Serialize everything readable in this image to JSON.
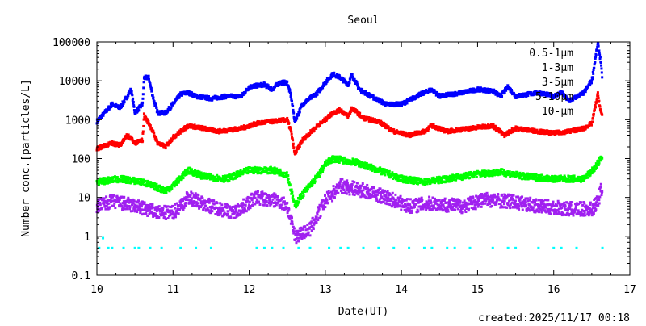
{
  "chart_data": {
    "type": "scatter",
    "title": "Seoul",
    "xlabel": "Date(UT)",
    "ylabel": "Number conc.[particles/L]",
    "xlim": [
      10,
      17
    ],
    "ylim": [
      0.1,
      100000
    ],
    "yscale": "log",
    "xticks": [
      "10",
      "11",
      "12",
      "13",
      "14",
      "15",
      "16",
      "17"
    ],
    "yticks": [
      "0.1",
      "1",
      "10",
      "100",
      "1000",
      "10000",
      "100000"
    ],
    "legend_position": "top-right",
    "footer": "created:2025/11/17 00:18",
    "series": [
      {
        "name": "0.5-1μm",
        "color": "#0000ff",
        "points": [
          [
            10.0,
            900
          ],
          [
            10.1,
            1500
          ],
          [
            10.2,
            2500
          ],
          [
            10.3,
            2000
          ],
          [
            10.4,
            4000
          ],
          [
            10.45,
            6000
          ],
          [
            10.5,
            1500
          ],
          [
            10.6,
            2500
          ],
          [
            10.62,
            12000
          ],
          [
            10.68,
            12000
          ],
          [
            10.75,
            3000
          ],
          [
            10.8,
            1500
          ],
          [
            10.9,
            1500
          ],
          [
            11.0,
            2500
          ],
          [
            11.1,
            4500
          ],
          [
            11.2,
            5000
          ],
          [
            11.3,
            4000
          ],
          [
            11.5,
            3500
          ],
          [
            11.7,
            4000
          ],
          [
            11.9,
            4000
          ],
          [
            12.0,
            7000
          ],
          [
            12.2,
            8000
          ],
          [
            12.3,
            6000
          ],
          [
            12.4,
            9000
          ],
          [
            12.5,
            9000
          ],
          [
            12.55,
            4000
          ],
          [
            12.6,
            900
          ],
          [
            12.7,
            2500
          ],
          [
            12.9,
            5000
          ],
          [
            13.0,
            9000
          ],
          [
            13.1,
            15000
          ],
          [
            13.2,
            12000
          ],
          [
            13.3,
            8000
          ],
          [
            13.35,
            14000
          ],
          [
            13.45,
            6000
          ],
          [
            13.6,
            4000
          ],
          [
            13.8,
            2500
          ],
          [
            14.0,
            2500
          ],
          [
            14.2,
            4000
          ],
          [
            14.3,
            5000
          ],
          [
            14.4,
            6000
          ],
          [
            14.5,
            4000
          ],
          [
            14.8,
            5000
          ],
          [
            15.0,
            6000
          ],
          [
            15.2,
            5500
          ],
          [
            15.3,
            4000
          ],
          [
            15.4,
            7000
          ],
          [
            15.5,
            4000
          ],
          [
            15.8,
            5000
          ],
          [
            16.0,
            4000
          ],
          [
            16.1,
            5000
          ],
          [
            16.2,
            3000
          ],
          [
            16.4,
            5000
          ],
          [
            16.5,
            10000
          ],
          [
            16.55,
            40000
          ],
          [
            16.58,
            90000
          ],
          [
            16.62,
            30000
          ],
          [
            16.64,
            9000
          ]
        ]
      },
      {
        "name": "1-3μm",
        "color": "#ff0000",
        "points": [
          [
            10.0,
            180
          ],
          [
            10.2,
            250
          ],
          [
            10.3,
            220
          ],
          [
            10.4,
            400
          ],
          [
            10.5,
            250
          ],
          [
            10.6,
            300
          ],
          [
            10.62,
            1300
          ],
          [
            10.7,
            700
          ],
          [
            10.8,
            250
          ],
          [
            10.9,
            200
          ],
          [
            11.0,
            350
          ],
          [
            11.2,
            700
          ],
          [
            11.4,
            600
          ],
          [
            11.6,
            500
          ],
          [
            11.9,
            600
          ],
          [
            12.1,
            800
          ],
          [
            12.3,
            900
          ],
          [
            12.5,
            1000
          ],
          [
            12.55,
            500
          ],
          [
            12.6,
            130
          ],
          [
            12.7,
            300
          ],
          [
            12.9,
            700
          ],
          [
            13.0,
            1000
          ],
          [
            13.1,
            1500
          ],
          [
            13.2,
            1800
          ],
          [
            13.3,
            1200
          ],
          [
            13.35,
            2000
          ],
          [
            13.5,
            1100
          ],
          [
            13.7,
            900
          ],
          [
            13.9,
            500
          ],
          [
            14.1,
            400
          ],
          [
            14.3,
            500
          ],
          [
            14.4,
            700
          ],
          [
            14.6,
            500
          ],
          [
            14.9,
            600
          ],
          [
            15.2,
            700
          ],
          [
            15.35,
            400
          ],
          [
            15.5,
            600
          ],
          [
            15.8,
            500
          ],
          [
            16.0,
            450
          ],
          [
            16.2,
            500
          ],
          [
            16.4,
            600
          ],
          [
            16.5,
            800
          ],
          [
            16.58,
            4500
          ],
          [
            16.62,
            1500
          ],
          [
            16.64,
            1300
          ]
        ]
      },
      {
        "name": "3-5μm",
        "color": "#00ff00",
        "points": [
          [
            10.0,
            25
          ],
          [
            10.3,
            30
          ],
          [
            10.6,
            25
          ],
          [
            10.9,
            15
          ],
          [
            11.0,
            20
          ],
          [
            11.2,
            50
          ],
          [
            11.4,
            35
          ],
          [
            11.7,
            30
          ],
          [
            12.0,
            50
          ],
          [
            12.3,
            50
          ],
          [
            12.5,
            40
          ],
          [
            12.6,
            6
          ],
          [
            12.7,
            12
          ],
          [
            12.9,
            35
          ],
          [
            13.0,
            70
          ],
          [
            13.1,
            100
          ],
          [
            13.4,
            80
          ],
          [
            13.7,
            50
          ],
          [
            14.0,
            30
          ],
          [
            14.3,
            25
          ],
          [
            14.6,
            30
          ],
          [
            15.0,
            40
          ],
          [
            15.3,
            45
          ],
          [
            15.6,
            35
          ],
          [
            16.0,
            30
          ],
          [
            16.4,
            30
          ],
          [
            16.55,
            60
          ],
          [
            16.64,
            120
          ]
        ]
      },
      {
        "name": "5-10μm",
        "color": "#a020f0",
        "points": [
          [
            10.0,
            6
          ],
          [
            10.2,
            8
          ],
          [
            10.5,
            6
          ],
          [
            10.8,
            4
          ],
          [
            11.0,
            4
          ],
          [
            11.2,
            10
          ],
          [
            11.5,
            6
          ],
          [
            11.8,
            4
          ],
          [
            12.1,
            10
          ],
          [
            12.4,
            8
          ],
          [
            12.5,
            6
          ],
          [
            12.6,
            1
          ],
          [
            12.8,
            1.5
          ],
          [
            13.0,
            8
          ],
          [
            13.2,
            20
          ],
          [
            13.5,
            15
          ],
          [
            13.8,
            10
          ],
          [
            14.1,
            6
          ],
          [
            14.4,
            7
          ],
          [
            14.8,
            6
          ],
          [
            15.1,
            9
          ],
          [
            15.4,
            8
          ],
          [
            15.8,
            6
          ],
          [
            16.2,
            5
          ],
          [
            16.5,
            5
          ],
          [
            16.58,
            8
          ],
          [
            16.64,
            20
          ]
        ]
      },
      {
        "name": "10-μm",
        "color": "#00ffff",
        "points": [
          [
            10.03,
            0.5
          ],
          [
            10.08,
            0.9
          ],
          [
            10.15,
            0.5
          ],
          [
            10.2,
            0.5
          ],
          [
            10.35,
            0.5
          ],
          [
            10.5,
            0.5
          ],
          [
            10.55,
            0.5
          ],
          [
            10.7,
            0.5
          ],
          [
            10.85,
            0.5
          ],
          [
            11.1,
            0.5
          ],
          [
            11.3,
            0.5
          ],
          [
            11.5,
            0.5
          ],
          [
            12.1,
            0.5
          ],
          [
            12.2,
            0.5
          ],
          [
            12.3,
            0.5
          ],
          [
            12.45,
            0.5
          ],
          [
            12.65,
            0.5
          ],
          [
            12.8,
            0.5
          ],
          [
            13.05,
            0.5
          ],
          [
            13.2,
            0.5
          ],
          [
            13.3,
            0.5
          ],
          [
            13.5,
            0.5
          ],
          [
            13.7,
            0.5
          ],
          [
            13.9,
            0.5
          ],
          [
            14.1,
            0.5
          ],
          [
            14.3,
            0.5
          ],
          [
            14.4,
            0.5
          ],
          [
            14.6,
            0.5
          ],
          [
            14.7,
            0.5
          ],
          [
            14.9,
            0.5
          ],
          [
            15.2,
            0.5
          ],
          [
            15.4,
            0.5
          ],
          [
            15.5,
            0.5
          ],
          [
            15.8,
            0.5
          ],
          [
            16.0,
            0.5
          ],
          [
            16.1,
            0.5
          ],
          [
            16.3,
            0.5
          ],
          [
            16.64,
            0.5
          ]
        ]
      }
    ]
  }
}
